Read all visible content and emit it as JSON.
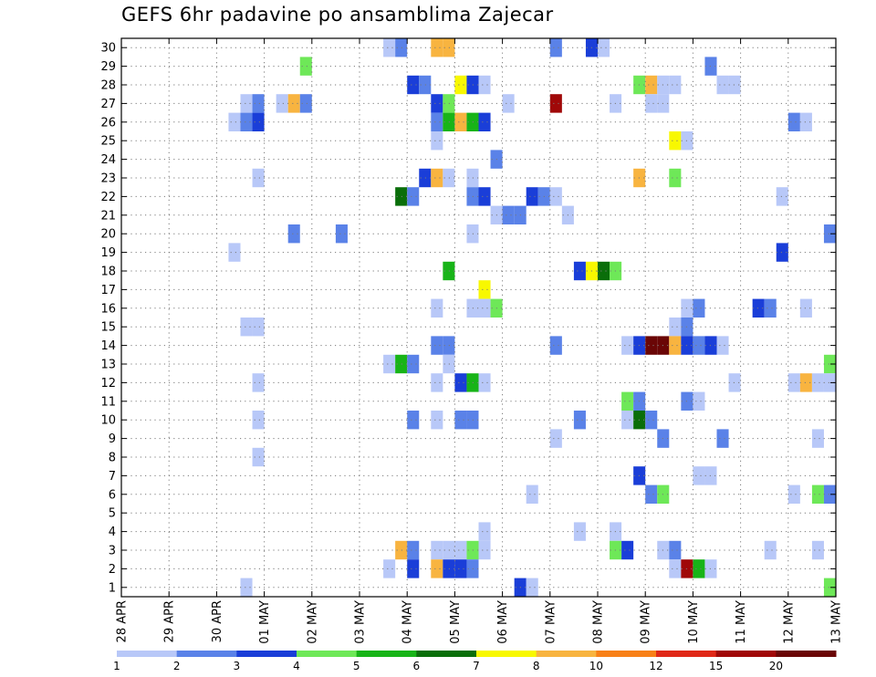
{
  "title": "GEFS 6hr padavine po ansamblima Zajecar",
  "chart_data": {
    "type": "heatmap",
    "title": "GEFS 6hr padavine po ansamblima Zajecar",
    "xlabel": "",
    "ylabel": "",
    "x_ticks": [
      "28 APR",
      "29 APR",
      "30 APR",
      "01 MAY",
      "02 MAY",
      "03 MAY",
      "04 MAY",
      "05 MAY",
      "06 MAY",
      "07 MAY",
      "08 MAY",
      "09 MAY",
      "10 MAY",
      "11 MAY",
      "12 MAY",
      "13 MAY"
    ],
    "x_range_days": [
      0,
      15
    ],
    "y_ticks": [
      1,
      2,
      3,
      4,
      5,
      6,
      7,
      8,
      9,
      10,
      11,
      12,
      13,
      14,
      15,
      16,
      17,
      18,
      19,
      20,
      21,
      22,
      23,
      24,
      25,
      26,
      27,
      28,
      29,
      30
    ],
    "y_range": [
      0.5,
      30.5
    ],
    "time_step_days": 0.25,
    "grid": "dotted",
    "legend": {
      "placement": "bottom",
      "labels": [
        "1",
        "2",
        "3",
        "4",
        "5",
        "6",
        "7",
        "8",
        "10",
        "12",
        "15",
        "20"
      ],
      "colors": [
        "#b8c8f8",
        "#5a82e8",
        "#1a3ed8",
        "#6ee858",
        "#18b418",
        "#0a6e0a",
        "#f8f800",
        "#f8b440",
        "#f88018",
        "#e02818",
        "#a00808",
        "#6a0606"
      ]
    },
    "cells": [
      {
        "member": 30,
        "day": 5.5,
        "class": 1
      },
      {
        "member": 30,
        "day": 5.75,
        "class": 2
      },
      {
        "member": 30,
        "day": 6.5,
        "class": 8
      },
      {
        "member": 30,
        "day": 6.75,
        "class": 8
      },
      {
        "member": 30,
        "day": 9.0,
        "class": 2
      },
      {
        "member": 30,
        "day": 9.75,
        "class": 3
      },
      {
        "member": 30,
        "day": 10.0,
        "class": 1
      },
      {
        "member": 29,
        "day": 3.75,
        "class": 4
      },
      {
        "member": 29,
        "day": 12.25,
        "class": 2
      },
      {
        "member": 28,
        "day": 6.0,
        "class": 3
      },
      {
        "member": 28,
        "day": 6.25,
        "class": 2
      },
      {
        "member": 28,
        "day": 7.0,
        "class": 7
      },
      {
        "member": 28,
        "day": 7.25,
        "class": 3
      },
      {
        "member": 28,
        "day": 7.5,
        "class": 1
      },
      {
        "member": 28,
        "day": 10.75,
        "class": 4
      },
      {
        "member": 28,
        "day": 11.0,
        "class": 8
      },
      {
        "member": 28,
        "day": 11.25,
        "class": 1
      },
      {
        "member": 28,
        "day": 11.5,
        "class": 1
      },
      {
        "member": 28,
        "day": 12.5,
        "class": 1
      },
      {
        "member": 28,
        "day": 12.75,
        "class": 1
      },
      {
        "member": 27,
        "day": 2.5,
        "class": 1
      },
      {
        "member": 27,
        "day": 2.75,
        "class": 2
      },
      {
        "member": 27,
        "day": 3.25,
        "class": 1
      },
      {
        "member": 27,
        "day": 3.5,
        "class": 8
      },
      {
        "member": 27,
        "day": 3.75,
        "class": 2
      },
      {
        "member": 27,
        "day": 6.5,
        "class": 3
      },
      {
        "member": 27,
        "day": 6.75,
        "class": 4
      },
      {
        "member": 27,
        "day": 8.0,
        "class": 1
      },
      {
        "member": 27,
        "day": 9.0,
        "class": 11
      },
      {
        "member": 27,
        "day": 10.25,
        "class": 1
      },
      {
        "member": 27,
        "day": 11.0,
        "class": 1
      },
      {
        "member": 27,
        "day": 11.25,
        "class": 1
      },
      {
        "member": 26,
        "day": 2.25,
        "class": 1
      },
      {
        "member": 26,
        "day": 2.5,
        "class": 2
      },
      {
        "member": 26,
        "day": 2.75,
        "class": 3
      },
      {
        "member": 26,
        "day": 6.5,
        "class": 2
      },
      {
        "member": 26,
        "day": 6.75,
        "class": 5
      },
      {
        "member": 26,
        "day": 7.0,
        "class": 8
      },
      {
        "member": 26,
        "day": 7.25,
        "class": 5
      },
      {
        "member": 26,
        "day": 7.5,
        "class": 3
      },
      {
        "member": 26,
        "day": 14.0,
        "class": 2
      },
      {
        "member": 26,
        "day": 14.25,
        "class": 1
      },
      {
        "member": 25,
        "day": 6.5,
        "class": 1
      },
      {
        "member": 25,
        "day": 11.5,
        "class": 7
      },
      {
        "member": 25,
        "day": 11.75,
        "class": 1
      },
      {
        "member": 24,
        "day": 7.75,
        "class": 2
      },
      {
        "member": 23,
        "day": 2.75,
        "class": 1
      },
      {
        "member": 23,
        "day": 6.25,
        "class": 3
      },
      {
        "member": 23,
        "day": 6.5,
        "class": 8
      },
      {
        "member": 23,
        "day": 6.75,
        "class": 1
      },
      {
        "member": 23,
        "day": 7.25,
        "class": 1
      },
      {
        "member": 23,
        "day": 10.75,
        "class": 8
      },
      {
        "member": 23,
        "day": 11.5,
        "class": 4
      },
      {
        "member": 22,
        "day": 5.75,
        "class": 6
      },
      {
        "member": 22,
        "day": 6.0,
        "class": 2
      },
      {
        "member": 22,
        "day": 7.25,
        "class": 2
      },
      {
        "member": 22,
        "day": 7.5,
        "class": 3
      },
      {
        "member": 22,
        "day": 8.5,
        "class": 3
      },
      {
        "member": 22,
        "day": 8.75,
        "class": 2
      },
      {
        "member": 22,
        "day": 9.0,
        "class": 1
      },
      {
        "member": 22,
        "day": 13.75,
        "class": 1
      },
      {
        "member": 21,
        "day": 7.75,
        "class": 1
      },
      {
        "member": 21,
        "day": 8.0,
        "class": 2
      },
      {
        "member": 21,
        "day": 8.25,
        "class": 2
      },
      {
        "member": 21,
        "day": 9.25,
        "class": 1
      },
      {
        "member": 20,
        "day": 3.5,
        "class": 2
      },
      {
        "member": 20,
        "day": 4.5,
        "class": 2
      },
      {
        "member": 20,
        "day": 7.25,
        "class": 1
      },
      {
        "member": 20,
        "day": 14.75,
        "class": 2
      },
      {
        "member": 19,
        "day": 2.25,
        "class": 1
      },
      {
        "member": 19,
        "day": 13.75,
        "class": 3
      },
      {
        "member": 18,
        "day": 6.75,
        "class": 5
      },
      {
        "member": 18,
        "day": 9.5,
        "class": 3
      },
      {
        "member": 18,
        "day": 9.75,
        "class": 7
      },
      {
        "member": 18,
        "day": 10.0,
        "class": 6
      },
      {
        "member": 18,
        "day": 10.25,
        "class": 4
      },
      {
        "member": 17,
        "day": 7.5,
        "class": 7
      },
      {
        "member": 16,
        "day": 6.5,
        "class": 1
      },
      {
        "member": 16,
        "day": 7.25,
        "class": 1
      },
      {
        "member": 16,
        "day": 7.5,
        "class": 1
      },
      {
        "member": 16,
        "day": 7.75,
        "class": 4
      },
      {
        "member": 16,
        "day": 11.75,
        "class": 1
      },
      {
        "member": 16,
        "day": 12.0,
        "class": 2
      },
      {
        "member": 16,
        "day": 13.25,
        "class": 3
      },
      {
        "member": 16,
        "day": 13.5,
        "class": 2
      },
      {
        "member": 16,
        "day": 14.25,
        "class": 1
      },
      {
        "member": 15,
        "day": 2.5,
        "class": 1
      },
      {
        "member": 15,
        "day": 2.75,
        "class": 1
      },
      {
        "member": 15,
        "day": 11.5,
        "class": 1
      },
      {
        "member": 15,
        "day": 11.75,
        "class": 2
      },
      {
        "member": 14,
        "day": 6.5,
        "class": 2
      },
      {
        "member": 14,
        "day": 6.75,
        "class": 2
      },
      {
        "member": 14,
        "day": 9.0,
        "class": 2
      },
      {
        "member": 14,
        "day": 10.5,
        "class": 1
      },
      {
        "member": 14,
        "day": 10.75,
        "class": 3
      },
      {
        "member": 14,
        "day": 11.0,
        "class": 12
      },
      {
        "member": 14,
        "day": 11.25,
        "class": 12
      },
      {
        "member": 14,
        "day": 11.5,
        "class": 8
      },
      {
        "member": 14,
        "day": 11.75,
        "class": 3
      },
      {
        "member": 14,
        "day": 12.0,
        "class": 2
      },
      {
        "member": 14,
        "day": 12.25,
        "class": 3
      },
      {
        "member": 14,
        "day": 12.5,
        "class": 1
      },
      {
        "member": 13,
        "day": 5.5,
        "class": 1
      },
      {
        "member": 13,
        "day": 5.75,
        "class": 5
      },
      {
        "member": 13,
        "day": 6.0,
        "class": 2
      },
      {
        "member": 13,
        "day": 6.75,
        "class": 1
      },
      {
        "member": 13,
        "day": 14.75,
        "class": 4
      },
      {
        "member": 12,
        "day": 2.75,
        "class": 1
      },
      {
        "member": 12,
        "day": 6.5,
        "class": 1
      },
      {
        "member": 12,
        "day": 7.0,
        "class": 3
      },
      {
        "member": 12,
        "day": 7.25,
        "class": 5
      },
      {
        "member": 12,
        "day": 7.5,
        "class": 1
      },
      {
        "member": 12,
        "day": 12.75,
        "class": 1
      },
      {
        "member": 12,
        "day": 14.0,
        "class": 1
      },
      {
        "member": 12,
        "day": 14.25,
        "class": 8
      },
      {
        "member": 12,
        "day": 14.5,
        "class": 1
      },
      {
        "member": 12,
        "day": 14.75,
        "class": 1
      },
      {
        "member": 11,
        "day": 10.5,
        "class": 4
      },
      {
        "member": 11,
        "day": 10.75,
        "class": 2
      },
      {
        "member": 11,
        "day": 11.75,
        "class": 2
      },
      {
        "member": 11,
        "day": 12.0,
        "class": 1
      },
      {
        "member": 10,
        "day": 2.75,
        "class": 1
      },
      {
        "member": 10,
        "day": 6.0,
        "class": 2
      },
      {
        "member": 10,
        "day": 6.5,
        "class": 1
      },
      {
        "member": 10,
        "day": 7.0,
        "class": 2
      },
      {
        "member": 10,
        "day": 7.25,
        "class": 2
      },
      {
        "member": 10,
        "day": 9.5,
        "class": 2
      },
      {
        "member": 10,
        "day": 10.5,
        "class": 1
      },
      {
        "member": 10,
        "day": 10.75,
        "class": 6
      },
      {
        "member": 10,
        "day": 11.0,
        "class": 2
      },
      {
        "member": 9,
        "day": 9.0,
        "class": 1
      },
      {
        "member": 9,
        "day": 11.25,
        "class": 2
      },
      {
        "member": 9,
        "day": 12.5,
        "class": 2
      },
      {
        "member": 9,
        "day": 14.5,
        "class": 1
      },
      {
        "member": 8,
        "day": 2.75,
        "class": 1
      },
      {
        "member": 7,
        "day": 10.75,
        "class": 3
      },
      {
        "member": 7,
        "day": 12.0,
        "class": 1
      },
      {
        "member": 7,
        "day": 12.25,
        "class": 1
      },
      {
        "member": 6,
        "day": 8.5,
        "class": 1
      },
      {
        "member": 6,
        "day": 11.0,
        "class": 2
      },
      {
        "member": 6,
        "day": 11.25,
        "class": 4
      },
      {
        "member": 6,
        "day": 14.0,
        "class": 1
      },
      {
        "member": 6,
        "day": 14.5,
        "class": 4
      },
      {
        "member": 6,
        "day": 14.75,
        "class": 2
      },
      {
        "member": 4,
        "day": 7.5,
        "class": 1
      },
      {
        "member": 4,
        "day": 9.5,
        "class": 1
      },
      {
        "member": 4,
        "day": 10.25,
        "class": 1
      },
      {
        "member": 3,
        "day": 5.75,
        "class": 8
      },
      {
        "member": 3,
        "day": 6.0,
        "class": 2
      },
      {
        "member": 3,
        "day": 6.5,
        "class": 1
      },
      {
        "member": 3,
        "day": 6.75,
        "class": 1
      },
      {
        "member": 3,
        "day": 7.0,
        "class": 1
      },
      {
        "member": 3,
        "day": 7.25,
        "class": 4
      },
      {
        "member": 3,
        "day": 7.5,
        "class": 1
      },
      {
        "member": 3,
        "day": 10.25,
        "class": 4
      },
      {
        "member": 3,
        "day": 10.5,
        "class": 3
      },
      {
        "member": 3,
        "day": 11.25,
        "class": 1
      },
      {
        "member": 3,
        "day": 11.5,
        "class": 2
      },
      {
        "member": 3,
        "day": 13.5,
        "class": 1
      },
      {
        "member": 3,
        "day": 14.5,
        "class": 1
      },
      {
        "member": 2,
        "day": 5.5,
        "class": 1
      },
      {
        "member": 2,
        "day": 6.0,
        "class": 3
      },
      {
        "member": 2,
        "day": 6.5,
        "class": 8
      },
      {
        "member": 2,
        "day": 6.75,
        "class": 3
      },
      {
        "member": 2,
        "day": 7.0,
        "class": 3
      },
      {
        "member": 2,
        "day": 7.25,
        "class": 2
      },
      {
        "member": 2,
        "day": 11.5,
        "class": 1
      },
      {
        "member": 2,
        "day": 11.75,
        "class": 11
      },
      {
        "member": 2,
        "day": 12.0,
        "class": 5
      },
      {
        "member": 2,
        "day": 12.25,
        "class": 1
      },
      {
        "member": 1,
        "day": 2.5,
        "class": 1
      },
      {
        "member": 1,
        "day": 8.25,
        "class": 3
      },
      {
        "member": 1,
        "day": 8.5,
        "class": 1
      },
      {
        "member": 1,
        "day": 14.75,
        "class": 4
      }
    ]
  }
}
